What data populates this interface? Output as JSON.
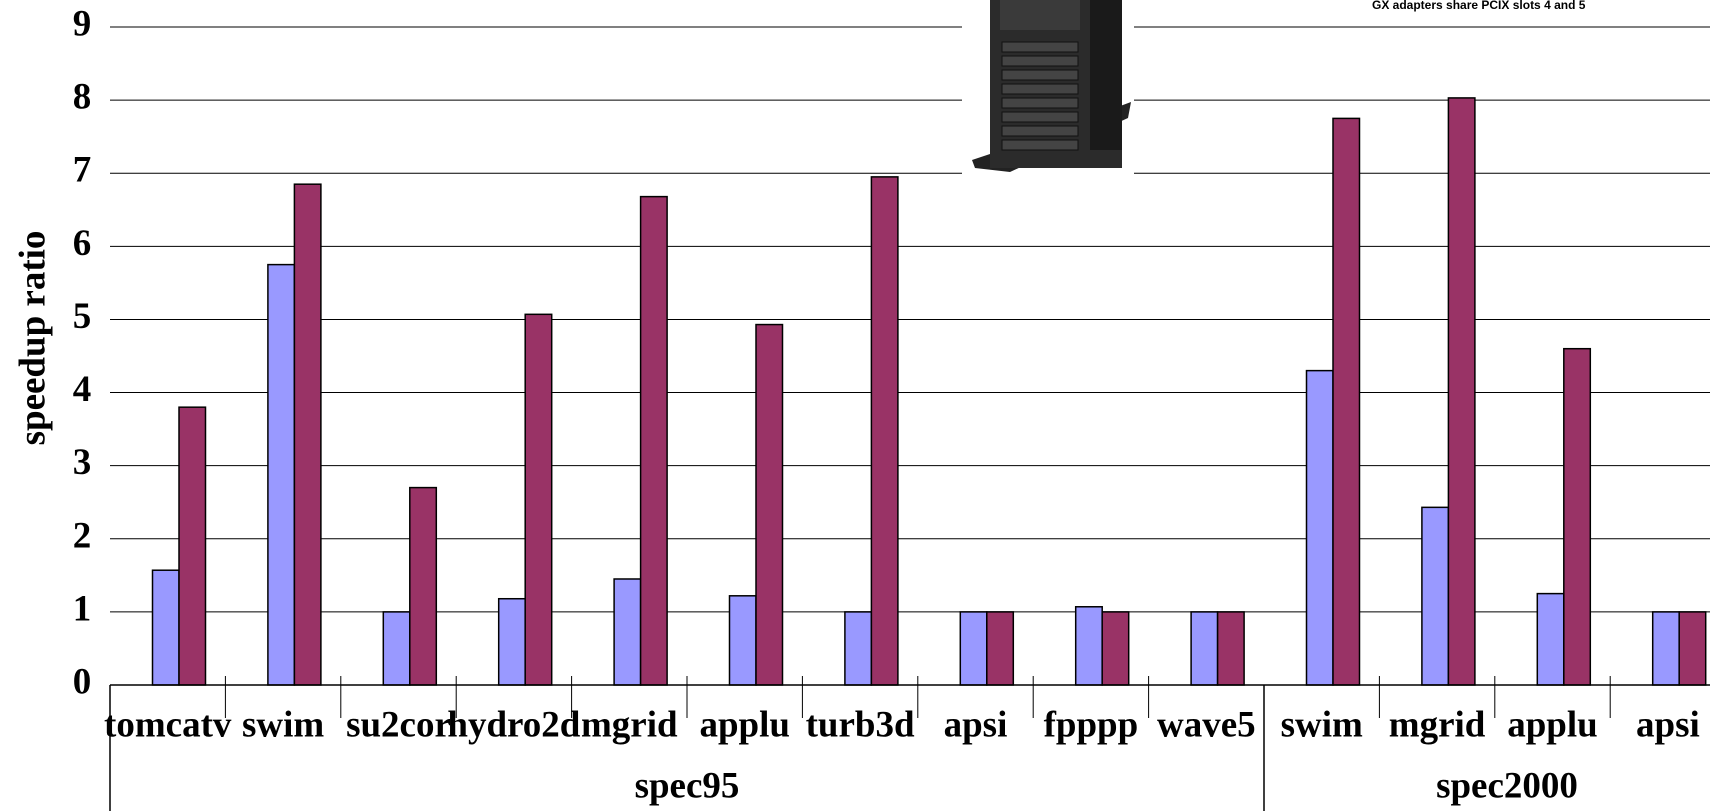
{
  "chart_data": {
    "type": "bar",
    "y_label": "speedup ratio",
    "annotation": "GX adapters share PCIX slots 4 and 5",
    "groups": [
      {
        "label": "spec95",
        "categories": [
          "tomcatv",
          "swim",
          "su2cor",
          "hydro2d",
          "mgrid",
          "applu",
          "turb3d",
          "apsi",
          "fpppp",
          "wave5"
        ]
      },
      {
        "label": "spec2000",
        "categories": [
          "swim",
          "mgrid",
          "applu",
          "apsi"
        ]
      }
    ],
    "series": [
      {
        "color": "#9999ff",
        "values": [
          1.57,
          5.75,
          1.0,
          1.18,
          1.45,
          1.22,
          1.0,
          1.0,
          1.07,
          1.0,
          4.3,
          2.43,
          1.25,
          1.0
        ]
      },
      {
        "color": "#993366",
        "values": [
          3.8,
          6.85,
          2.7,
          5.07,
          6.68,
          4.93,
          6.95,
          1.0,
          1.0,
          1.0,
          7.75,
          8.03,
          4.6,
          1.0
        ]
      }
    ],
    "ylim": [
      0,
      9
    ],
    "yticks": [
      0,
      1,
      2,
      3,
      4,
      5,
      6,
      7,
      8,
      9
    ],
    "grid": true
  }
}
